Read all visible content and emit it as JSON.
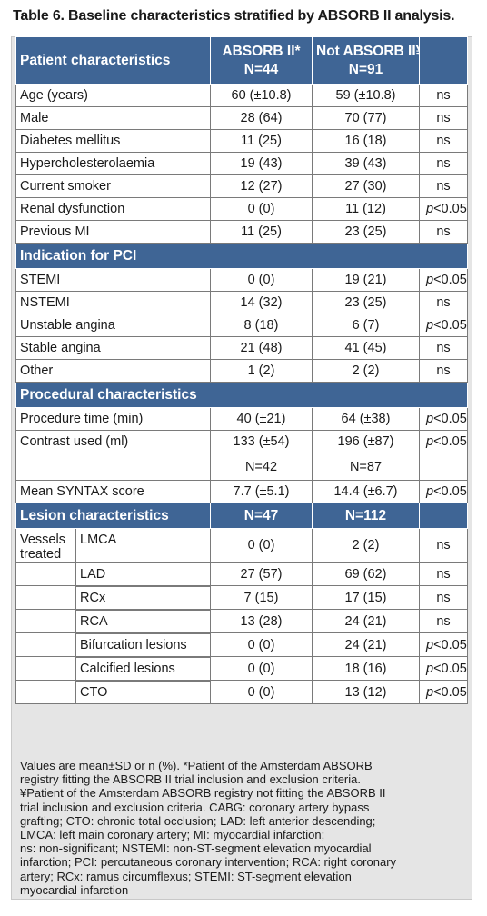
{
  "title": "Table 6. Baseline characteristics stratified by ABSORB II analysis.",
  "header": {
    "col1": "Patient characteristics",
    "col2_line1": "ABSORB II*",
    "col2_line2": "N=44",
    "col3_line1": "Not ABSORB II¥",
    "col3_line2": "N=91"
  },
  "patient_rows": [
    {
      "label": "Age (years)",
      "a": "60 (±10.8)",
      "b": "59 (±10.8)",
      "p": "ns"
    },
    {
      "label": "Male",
      "a": "28 (64)",
      "b": "70 (77)",
      "p": "ns"
    },
    {
      "label": "Diabetes mellitus",
      "a": "11 (25)",
      "b": "16 (18)",
      "p": "ns"
    },
    {
      "label": "Hypercholesterolaemia",
      "a": "19 (43)",
      "b": "39 (43)",
      "p": "ns"
    },
    {
      "label": "Current smoker",
      "a": "12 (27)",
      "b": "27 (30)",
      "p": "ns"
    },
    {
      "label": "Renal dysfunction",
      "a": "0 (0)",
      "b": "11 (12)",
      "p_italic": "p",
      "p_rest": "<0.05"
    },
    {
      "label": "Previous MI",
      "a": "11 (25)",
      "b": "23 (25)",
      "p": "ns"
    }
  ],
  "indication_header": "Indication for PCI",
  "indication_rows": [
    {
      "label": "STEMI",
      "a": "0 (0)",
      "b": "19 (21)",
      "p_italic": "p",
      "p_rest": "<0.05"
    },
    {
      "label": "NSTEMI",
      "a": "14 (32)",
      "b": "23 (25)",
      "p": "ns"
    },
    {
      "label": "Unstable angina",
      "a": "8 (18)",
      "b": "6 (7)",
      "p_italic": "p",
      "p_rest": "<0.05"
    },
    {
      "label": "Stable angina",
      "a": "21 (48)",
      "b": "41 (45)",
      "p": "ns"
    },
    {
      "label": "Other",
      "a": "1 (2)",
      "b": "2 (2)",
      "p": "ns"
    }
  ],
  "procedural_header": "Procedural characteristics",
  "procedural_rows": [
    {
      "label": "Procedure time (min)",
      "a": "40 (±21)",
      "b": "64 (±38)",
      "p_italic": "p",
      "p_rest": "<0.05"
    },
    {
      "label": "Contrast used (ml)",
      "a": "133 (±54)",
      "b": "196 (±87)",
      "p_italic": "p",
      "p_rest": "<0.05"
    }
  ],
  "syntax_n": {
    "a": "N=42",
    "b": "N=87"
  },
  "syntax_row": {
    "label": "Mean SYNTAX score",
    "a": "7.7 (±5.1)",
    "b": "14.4 (±6.7)",
    "p_italic": "p",
    "p_rest": "<0.05"
  },
  "lesion_header": {
    "label": "Lesion characteristics",
    "a": "N=47",
    "b": "N=112"
  },
  "vessels_label": "Vessels treated",
  "lesion_rows": [
    {
      "label": "LMCA",
      "a": "0 (0)",
      "b": "2 (2)",
      "p": "ns"
    },
    {
      "label": "LAD",
      "a": "27 (57)",
      "b": "69 (62)",
      "p": "ns"
    },
    {
      "label": "RCx",
      "a": "7 (15)",
      "b": "17 (15)",
      "p": "ns"
    },
    {
      "label": "RCA",
      "a": "13 (28)",
      "b": "24 (21)",
      "p": "ns"
    },
    {
      "label": "Bifurcation lesions",
      "a": "0 (0)",
      "b": "24 (21)",
      "p_italic": "p",
      "p_rest": "<0.05"
    },
    {
      "label": "Calcified lesions",
      "a": "0 (0)",
      "b": "18 (16)",
      "p_italic": "p",
      "p_rest": "<0.05"
    },
    {
      "label": "CTO",
      "a": "0 (0)",
      "b": "13 (12)",
      "p_italic": "p",
      "p_rest": "<0.05"
    }
  ],
  "footnote": {
    "line1": "Values are mean±SD or n (%). *Patient of the Amsterdam ABSORB",
    "line2": "registry fitting the ABSORB II trial inclusion and exclusion criteria.",
    "line3": "¥Patient of the Amsterdam ABSORB registry not fitting the ABSORB II",
    "line4": "trial inclusion and exclusion criteria. CABG: coronary artery bypass",
    "line5": "grafting; CTO: chronic total occlusion; LAD: left anterior descending;",
    "line6": "LMCA: left main coronary artery; MI: myocardial infarction;",
    "line7": "ns: non-significant; NSTEMI: non-ST-segment elevation myocardial",
    "line8": "infarction; PCI: percutaneous coronary intervention; RCA: right coronary",
    "line9": "artery; RCx: ramus circumflexus; STEMI: ST-segment elevation",
    "line10": "myocardial infarction"
  }
}
